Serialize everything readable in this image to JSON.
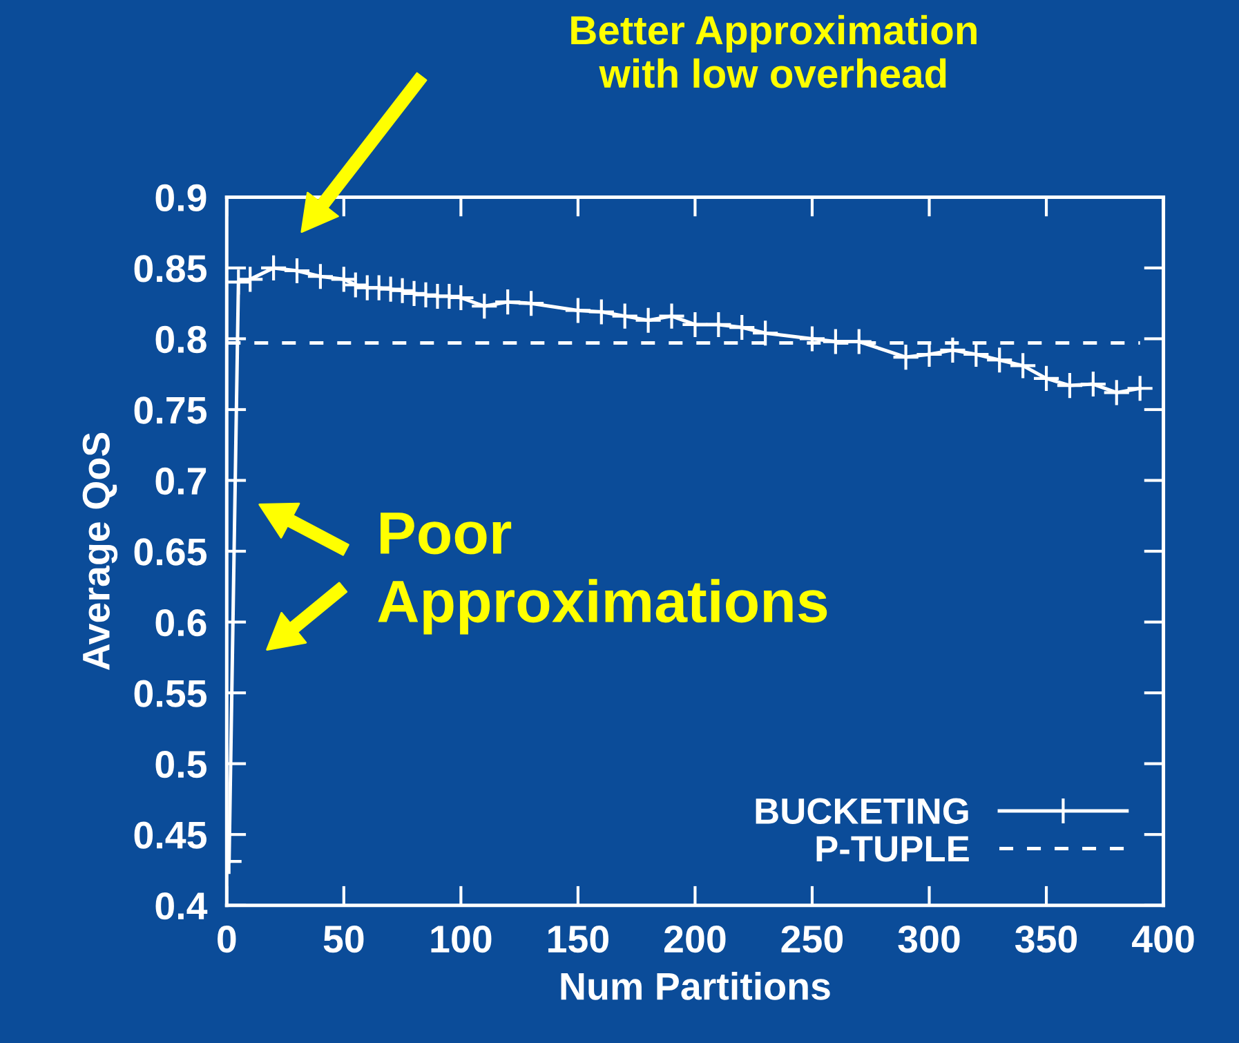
{
  "chart_data": {
    "type": "line",
    "xlabel": "Num Partitions",
    "ylabel": "Average QoS",
    "xlim": [
      0,
      400
    ],
    "xticks": [
      0,
      50,
      100,
      150,
      200,
      250,
      300,
      350,
      400
    ],
    "ylim": [
      0.4,
      0.9
    ],
    "yticks": [
      0.4,
      0.45,
      0.5,
      0.55,
      0.6,
      0.65,
      0.7,
      0.75,
      0.8,
      0.85,
      0.9
    ],
    "grid": false,
    "legend": "bottom right",
    "annotations": [
      "Better Approximation\nwith low overhead",
      "Poor\nApproximations"
    ],
    "series": [
      {
        "name": "BUCKETING",
        "color": "#ffffff",
        "marker": "cross",
        "line_style": "solid",
        "x": [
          1,
          5,
          10,
          20,
          30,
          40,
          50,
          55,
          60,
          65,
          70,
          75,
          80,
          85,
          90,
          95,
          100,
          110,
          120,
          130,
          150,
          160,
          170,
          180,
          190,
          200,
          210,
          220,
          230,
          250,
          260,
          270,
          290,
          300,
          310,
          320,
          330,
          340,
          350,
          360,
          370,
          380,
          390
        ],
        "values": [
          0.431,
          0.84,
          0.842,
          0.85,
          0.848,
          0.844,
          0.842,
          0.838,
          0.836,
          0.836,
          0.835,
          0.834,
          0.832,
          0.831,
          0.83,
          0.83,
          0.829,
          0.823,
          0.826,
          0.825,
          0.82,
          0.819,
          0.816,
          0.813,
          0.816,
          0.81,
          0.81,
          0.808,
          0.804,
          0.8,
          0.798,
          0.798,
          0.787,
          0.789,
          0.792,
          0.789,
          0.785,
          0.781,
          0.772,
          0.767,
          0.768,
          0.762,
          0.765
        ]
      },
      {
        "name": "P-TUPLE",
        "color": "#ffffff",
        "marker": "none",
        "line_style": "dashed",
        "x": [
          0,
          390
        ],
        "values": [
          0.797,
          0.797
        ]
      }
    ]
  }
}
